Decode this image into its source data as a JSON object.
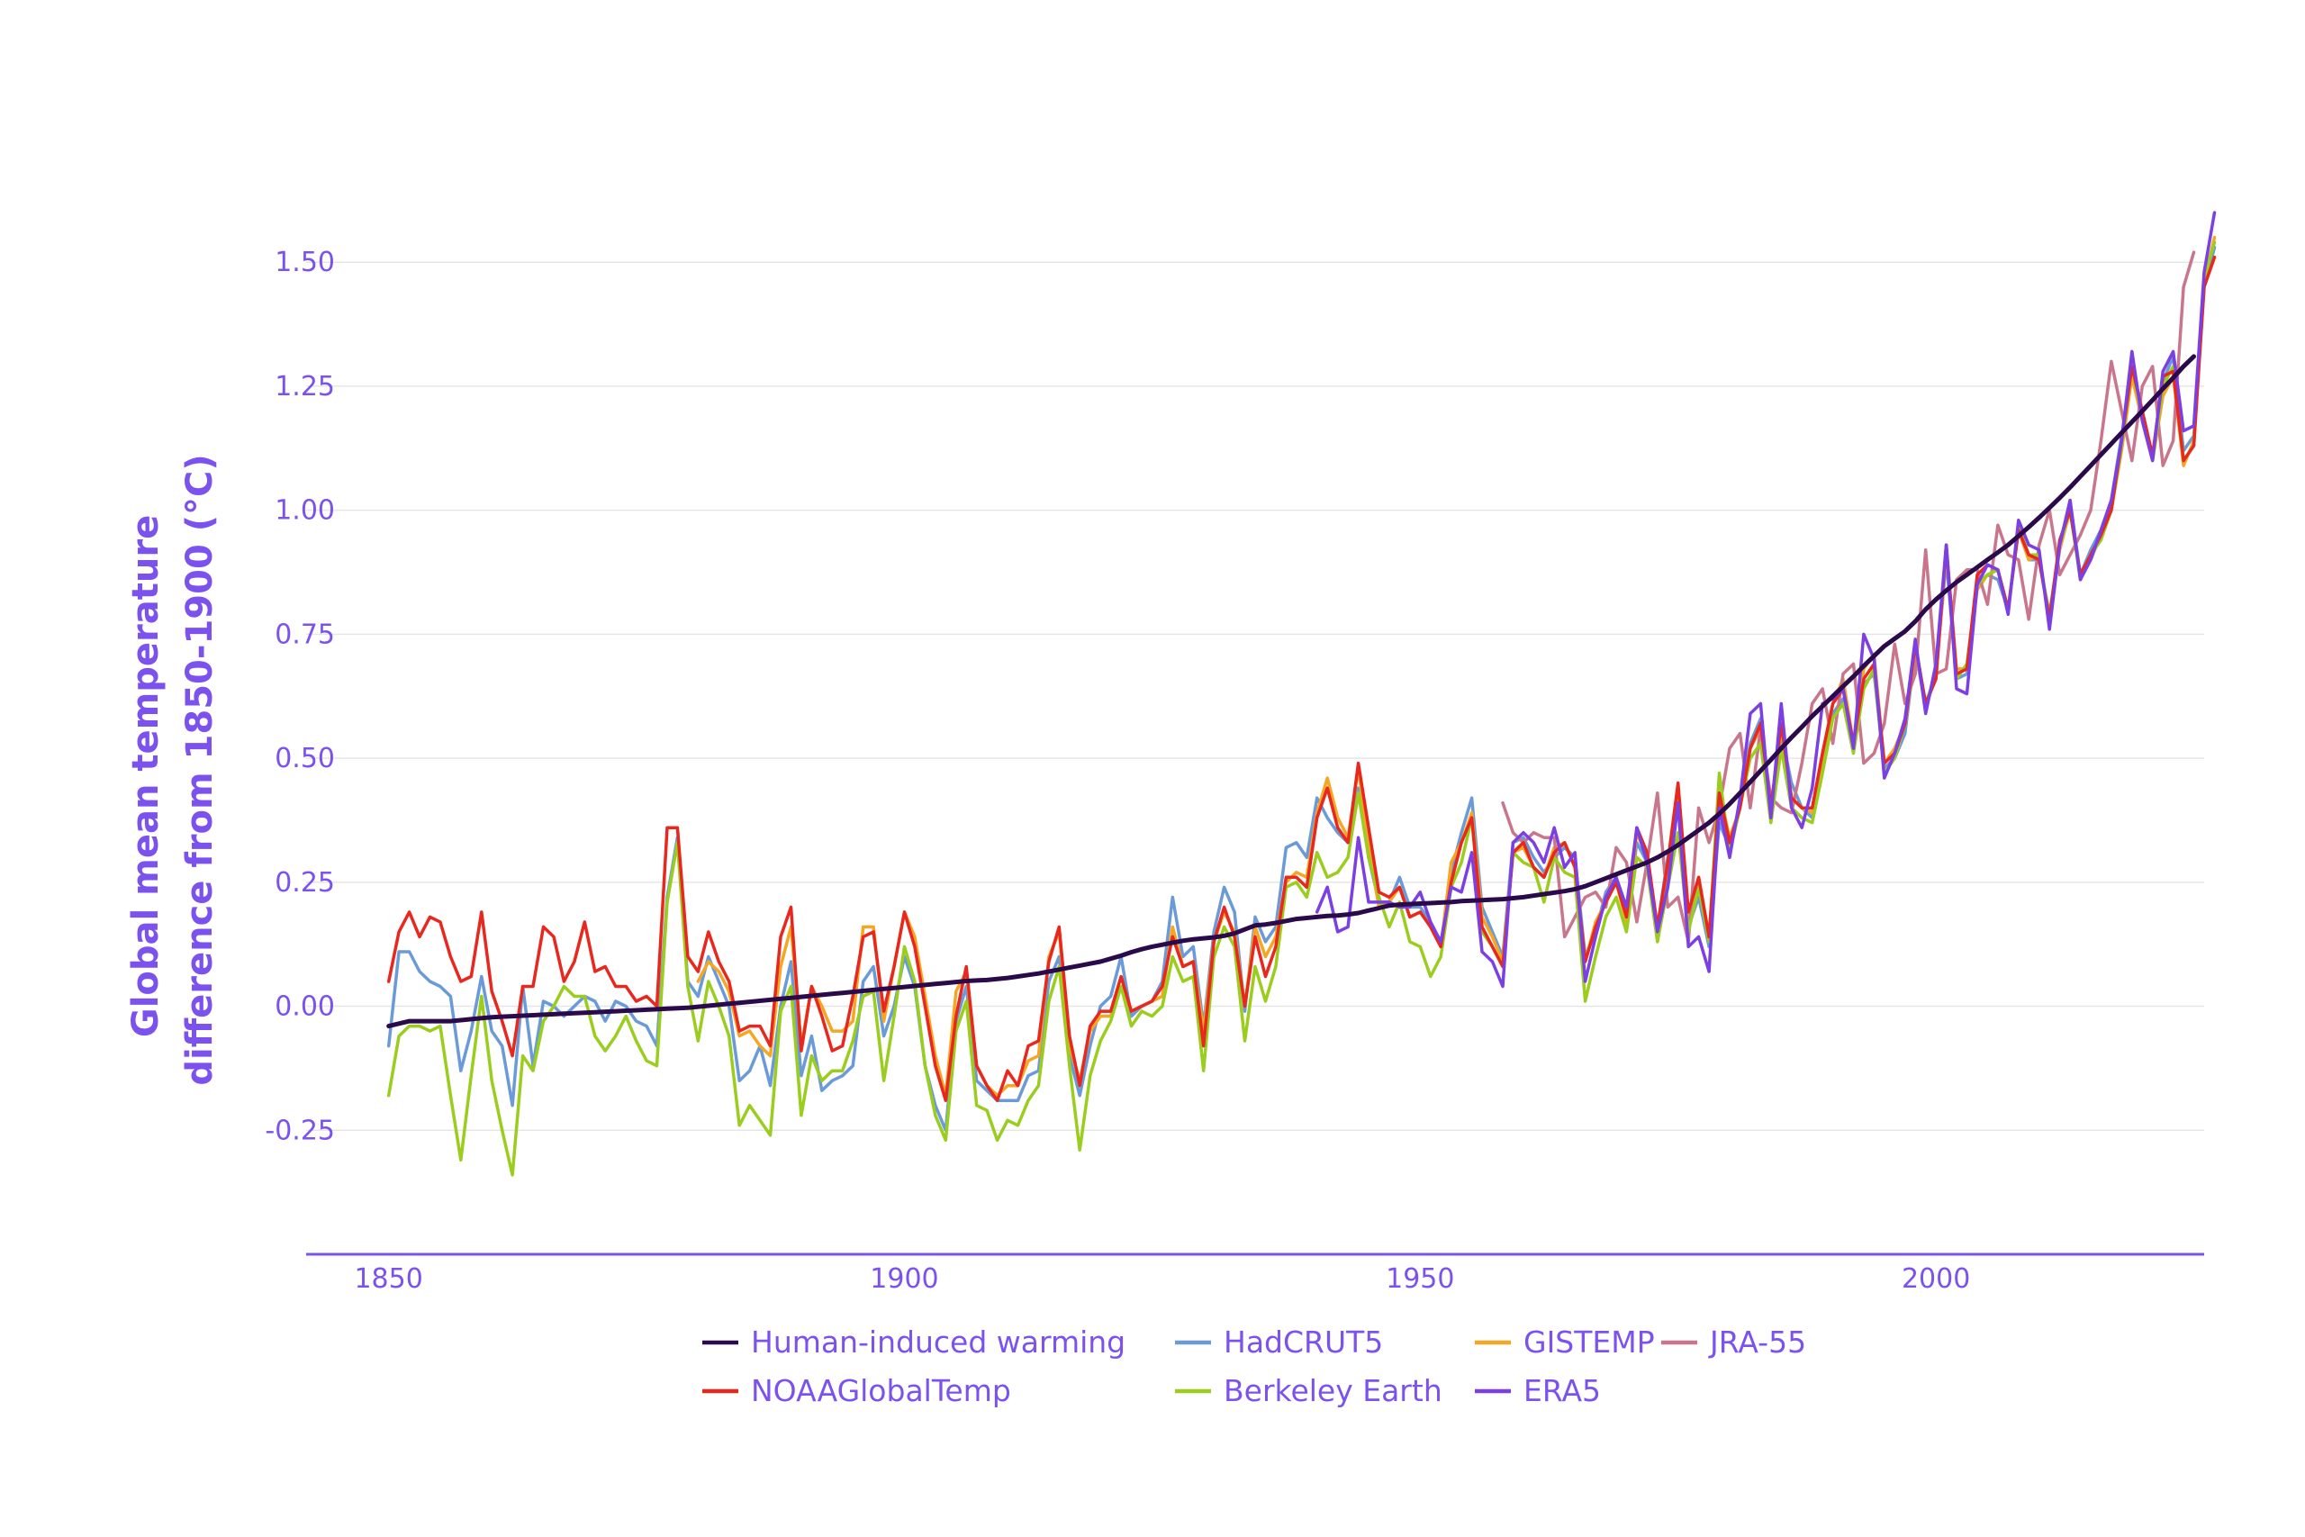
{
  "chart_data": {
    "type": "line",
    "title": "",
    "xlabel": "",
    "ylabel": [
      "Global mean temperature",
      "difference from 1850-1900 (°C)"
    ],
    "xlim": [
      1842,
      2026
    ],
    "ylim": [
      -0.5,
      1.72
    ],
    "x_ticks": [
      1850,
      1900,
      1950,
      2000
    ],
    "x_tick_labels": [
      "1850",
      "1900",
      "1950",
      "2000"
    ],
    "y_ticks": [
      1.5,
      1.25,
      1.0,
      0.75,
      0.5,
      0.25,
      0.0,
      -0.25
    ],
    "y_tick_labels": [
      "1.50",
      "1.25",
      "1.00",
      "0.75",
      "0.50",
      "0.25",
      "0.00",
      "-0.25"
    ],
    "grid": true,
    "legend": "bottom",
    "axis_color": "#7b52ee",
    "series": [
      {
        "name": "HadCRUT5",
        "color": "#6a9bd8",
        "width": 3.5,
        "x_start": 1850,
        "values": [
          -0.08,
          0.11,
          0.11,
          0.07,
          0.05,
          0.04,
          0.02,
          -0.13,
          -0.05,
          0.06,
          -0.05,
          -0.08,
          -0.2,
          0.04,
          -0.12,
          0.01,
          0.0,
          -0.02,
          0.0,
          0.02,
          0.01,
          -0.03,
          0.01,
          0.0,
          -0.03,
          -0.04,
          -0.08,
          0.22,
          0.34,
          0.05,
          0.02,
          0.1,
          0.05,
          0.0,
          -0.15,
          -0.13,
          -0.08,
          -0.16,
          0.0,
          0.09,
          -0.14,
          -0.06,
          -0.17,
          -0.15,
          -0.14,
          -0.12,
          0.05,
          0.08,
          -0.06,
          0.0,
          0.1,
          0.04,
          -0.12,
          -0.2,
          -0.25,
          -0.03,
          0.04,
          -0.15,
          -0.17,
          -0.19,
          -0.19,
          -0.19,
          -0.14,
          -0.13,
          0.05,
          0.1,
          -0.1,
          -0.18,
          -0.08,
          0.0,
          0.02,
          0.1,
          -0.02,
          0.0,
          0.01,
          0.05,
          0.22,
          0.1,
          0.12,
          -0.04,
          0.15,
          0.24,
          0.19,
          -0.01,
          0.18,
          0.13,
          0.16,
          0.32,
          0.33,
          0.3,
          0.42,
          0.38,
          0.35,
          0.33,
          0.44,
          0.3,
          0.21,
          0.21,
          0.26,
          0.2,
          0.2,
          0.17,
          0.12,
          0.27,
          0.35,
          0.42,
          0.2,
          0.15,
          0.1,
          0.33,
          0.34,
          0.3,
          0.27,
          0.3,
          0.32,
          0.3,
          0.1,
          0.15,
          0.23,
          0.26,
          0.17,
          0.33,
          0.29,
          0.16,
          0.3,
          0.4,
          0.16,
          0.22,
          0.12,
          0.37,
          0.32,
          0.4,
          0.53,
          0.58,
          0.38,
          0.55,
          0.45,
          0.4,
          0.38,
          0.48,
          0.59,
          0.62,
          0.53,
          0.65,
          0.67,
          0.48,
          0.5,
          0.55,
          0.72,
          0.6,
          0.67,
          0.9,
          0.66,
          0.67,
          0.85,
          0.87,
          0.86,
          0.8,
          0.96,
          0.9,
          0.9,
          0.79,
          0.93,
          1.02,
          0.87,
          0.92,
          0.96,
          1.02,
          1.15,
          1.28,
          1.19,
          1.11,
          1.26,
          1.31,
          1.12,
          1.15,
          1.45,
          1.53
        ]
      },
      {
        "name": "GISTEMP",
        "color": "#f5a623",
        "width": 3.5,
        "x_start": 1880,
        "values": [
          0.05,
          0.09,
          0.07,
          0.03,
          -0.06,
          -0.05,
          -0.08,
          -0.1,
          0.08,
          0.16,
          -0.08,
          0.04,
          0.0,
          -0.05,
          -0.05,
          -0.03,
          0.16,
          0.16,
          -0.03,
          0.08,
          0.19,
          0.14,
          0.02,
          -0.1,
          -0.18,
          0.03,
          0.07,
          -0.12,
          -0.16,
          -0.18,
          -0.16,
          -0.16,
          -0.11,
          -0.1,
          0.1,
          0.15,
          -0.08,
          -0.15,
          -0.05,
          -0.02,
          -0.02,
          0.04,
          -0.01,
          0.0,
          0.01,
          0.02,
          0.16,
          0.08,
          0.09,
          -0.05,
          0.13,
          0.19,
          0.15,
          0.0,
          0.16,
          0.1,
          0.14,
          0.25,
          0.27,
          0.26,
          0.39,
          0.46,
          0.38,
          0.34,
          0.48,
          0.32,
          0.2,
          0.21,
          0.24,
          0.18,
          0.19,
          0.16,
          0.12,
          0.29,
          0.33,
          0.39,
          0.18,
          0.14,
          0.09,
          0.31,
          0.32,
          0.28,
          0.26,
          0.32,
          0.33,
          0.28,
          0.09,
          0.17,
          0.21,
          0.25,
          0.17,
          0.35,
          0.3,
          0.15,
          0.26,
          0.42,
          0.17,
          0.26,
          0.14,
          0.43,
          0.34,
          0.4,
          0.52,
          0.56,
          0.4,
          0.56,
          0.42,
          0.4,
          0.39,
          0.5,
          0.61,
          0.66,
          0.53,
          0.68,
          0.71,
          0.49,
          0.52,
          0.57,
          0.72,
          0.61,
          0.66,
          0.92,
          0.68,
          0.68,
          0.84,
          0.87,
          0.88,
          0.8,
          0.96,
          0.9,
          0.91,
          0.78,
          0.92,
          1.0,
          0.87,
          0.9,
          0.95,
          1.0,
          1.12,
          1.27,
          1.18,
          1.1,
          1.23,
          1.27,
          1.09,
          1.14,
          1.46,
          1.55
        ]
      },
      {
        "name": "JRA-55",
        "color": "#c9768c",
        "width": 3.5,
        "x_start": 1958,
        "values": [
          0.41,
          0.35,
          0.33,
          0.35,
          0.34,
          0.34,
          0.14,
          0.18,
          0.22,
          0.23,
          0.2,
          0.32,
          0.29,
          0.17,
          0.29,
          0.43,
          0.2,
          0.22,
          0.13,
          0.4,
          0.33,
          0.4,
          0.52,
          0.55,
          0.4,
          0.56,
          0.42,
          0.4,
          0.39,
          0.49,
          0.61,
          0.64,
          0.53,
          0.67,
          0.69,
          0.49,
          0.51,
          0.57,
          0.73,
          0.61,
          0.67,
          0.92,
          0.67,
          0.68,
          0.86,
          0.88,
          0.88,
          0.81,
          0.97,
          0.91,
          0.9,
          0.78,
          0.93,
          1.0,
          0.87,
          0.91,
          0.95,
          1.0,
          1.14,
          1.3,
          1.2,
          1.1,
          1.25,
          1.29,
          1.09,
          1.14,
          1.45,
          1.52
        ]
      },
      {
        "name": "Berkeley Earth",
        "color": "#9acd1e",
        "width": 3.5,
        "x_start": 1850,
        "values": [
          -0.18,
          -0.06,
          -0.04,
          -0.04,
          -0.05,
          -0.04,
          -0.18,
          -0.31,
          -0.14,
          0.02,
          -0.15,
          -0.25,
          -0.34,
          -0.1,
          -0.13,
          -0.03,
          0.0,
          0.04,
          0.02,
          0.02,
          -0.06,
          -0.09,
          -0.06,
          -0.02,
          -0.07,
          -0.11,
          -0.12,
          0.21,
          0.33,
          0.04,
          -0.07,
          0.05,
          0.0,
          -0.06,
          -0.24,
          -0.2,
          -0.23,
          -0.26,
          -0.01,
          0.04,
          -0.22,
          -0.1,
          -0.15,
          -0.13,
          -0.13,
          -0.07,
          0.02,
          0.03,
          -0.15,
          -0.02,
          0.12,
          0.05,
          -0.12,
          -0.22,
          -0.27,
          -0.05,
          0.01,
          -0.2,
          -0.21,
          -0.27,
          -0.23,
          -0.24,
          -0.19,
          -0.16,
          0.01,
          0.08,
          -0.12,
          -0.29,
          -0.14,
          -0.07,
          -0.03,
          0.04,
          -0.04,
          -0.01,
          -0.02,
          0.0,
          0.1,
          0.05,
          0.06,
          -0.13,
          0.1,
          0.16,
          0.12,
          -0.07,
          0.08,
          0.01,
          0.08,
          0.24,
          0.25,
          0.22,
          0.31,
          0.26,
          0.27,
          0.3,
          0.43,
          0.3,
          0.22,
          0.16,
          0.21,
          0.13,
          0.12,
          0.06,
          0.1,
          0.24,
          0.29,
          0.38,
          0.15,
          0.12,
          0.08,
          0.31,
          0.29,
          0.28,
          0.21,
          0.3,
          0.27,
          0.26,
          0.01,
          0.1,
          0.18,
          0.22,
          0.15,
          0.3,
          0.28,
          0.13,
          0.24,
          0.35,
          0.15,
          0.24,
          0.13,
          0.47,
          0.31,
          0.4,
          0.5,
          0.53,
          0.37,
          0.52,
          0.4,
          0.38,
          0.37,
          0.47,
          0.58,
          0.61,
          0.51,
          0.64,
          0.68,
          0.47,
          0.5,
          0.57,
          0.73,
          0.61,
          0.67,
          0.93,
          0.66,
          0.69,
          0.85,
          0.87,
          0.88,
          0.8,
          0.97,
          0.91,
          0.91,
          0.78,
          0.93,
          1.0,
          0.86,
          0.91,
          0.94,
          1.0,
          1.13,
          1.29,
          1.19,
          1.1,
          1.25,
          1.29,
          1.1,
          1.13,
          1.47,
          1.54
        ]
      },
      {
        "name": "NOAAGlobalTemp",
        "color": "#e8281e",
        "width": 3.5,
        "x_start": 1850,
        "values": [
          0.05,
          0.15,
          0.19,
          0.14,
          0.18,
          0.17,
          0.1,
          0.05,
          0.06,
          0.19,
          0.03,
          -0.03,
          -0.1,
          0.04,
          0.04,
          0.16,
          0.14,
          0.05,
          0.09,
          0.17,
          0.07,
          0.08,
          0.04,
          0.04,
          0.01,
          0.02,
          0.0,
          0.36,
          0.36,
          0.1,
          0.07,
          0.15,
          0.09,
          0.05,
          -0.05,
          -0.04,
          -0.04,
          -0.08,
          0.14,
          0.2,
          -0.09,
          0.04,
          -0.02,
          -0.09,
          -0.08,
          0.02,
          0.14,
          0.15,
          -0.01,
          0.08,
          0.19,
          0.12,
          0.0,
          -0.12,
          -0.19,
          -0.02,
          0.08,
          -0.12,
          -0.16,
          -0.19,
          -0.13,
          -0.16,
          -0.08,
          -0.07,
          0.09,
          0.16,
          -0.06,
          -0.16,
          -0.04,
          -0.01,
          -0.01,
          0.06,
          -0.01,
          0.0,
          0.01,
          0.04,
          0.14,
          0.08,
          0.09,
          -0.08,
          0.13,
          0.2,
          0.14,
          0.0,
          0.14,
          0.06,
          0.12,
          0.26,
          0.26,
          0.24,
          0.38,
          0.44,
          0.36,
          0.33,
          0.49,
          0.36,
          0.23,
          0.22,
          0.24,
          0.18,
          0.19,
          0.16,
          0.12,
          0.25,
          0.33,
          0.38,
          0.16,
          0.12,
          0.08,
          0.31,
          0.33,
          0.28,
          0.26,
          0.31,
          0.33,
          0.28,
          0.09,
          0.16,
          0.21,
          0.25,
          0.18,
          0.36,
          0.31,
          0.16,
          0.29,
          0.45,
          0.19,
          0.26,
          0.14,
          0.43,
          0.33,
          0.4,
          0.52,
          0.57,
          0.4,
          0.57,
          0.42,
          0.4,
          0.4,
          0.51,
          0.61,
          0.64,
          0.53,
          0.66,
          0.69,
          0.49,
          0.51,
          0.57,
          0.73,
          0.61,
          0.66,
          0.93,
          0.67,
          0.68,
          0.87,
          0.89,
          0.88,
          0.8,
          0.96,
          0.91,
          0.9,
          0.78,
          0.94,
          1.0,
          0.87,
          0.91,
          0.95,
          1.0,
          1.14,
          1.29,
          1.2,
          1.11,
          1.27,
          1.28,
          1.1,
          1.13,
          1.45,
          1.51
        ]
      },
      {
        "name": "ERA5",
        "color": "#7b3fe4",
        "width": 3.5,
        "x_start": 1940,
        "values": [
          0.19,
          0.24,
          0.15,
          0.16,
          0.34,
          0.21,
          0.21,
          0.21,
          0.2,
          0.2,
          0.23,
          0.17,
          0.13,
          0.24,
          0.23,
          0.31,
          0.11,
          0.09,
          0.04,
          0.33,
          0.35,
          0.33,
          0.29,
          0.36,
          0.28,
          0.31,
          0.05,
          0.14,
          0.22,
          0.26,
          0.2,
          0.36,
          0.29,
          0.15,
          0.24,
          0.41,
          0.12,
          0.14,
          0.07,
          0.4,
          0.3,
          0.42,
          0.59,
          0.61,
          0.38,
          0.61,
          0.4,
          0.36,
          0.44,
          0.61,
          0.62,
          0.64,
          0.52,
          0.75,
          0.7,
          0.46,
          0.51,
          0.58,
          0.74,
          0.59,
          0.69,
          0.93,
          0.64,
          0.63,
          0.85,
          0.89,
          0.88,
          0.79,
          0.98,
          0.93,
          0.92,
          0.76,
          0.93,
          1.02,
          0.86,
          0.9,
          0.96,
          1.02,
          1.14,
          1.32,
          1.18,
          1.1,
          1.28,
          1.32,
          1.16,
          1.17,
          1.48,
          1.6
        ]
      },
      {
        "name": "Human-induced warming",
        "color": "#2a0a4a",
        "width": 5,
        "x_start": 1850,
        "values": [
          -0.04,
          -0.035,
          -0.03,
          -0.03,
          -0.03,
          -0.03,
          -0.03,
          -0.028,
          -0.026,
          -0.024,
          -0.022,
          -0.021,
          -0.02,
          -0.019,
          -0.018,
          -0.017,
          -0.016,
          -0.015,
          -0.014,
          -0.013,
          -0.012,
          -0.011,
          -0.01,
          -0.009,
          -0.008,
          -0.007,
          -0.006,
          -0.005,
          -0.004,
          -0.003,
          -0.001,
          0.001,
          0.003,
          0.005,
          0.007,
          0.009,
          0.011,
          0.013,
          0.015,
          0.017,
          0.019,
          0.021,
          0.023,
          0.025,
          0.027,
          0.029,
          0.031,
          0.033,
          0.035,
          0.037,
          0.039,
          0.041,
          0.043,
          0.045,
          0.047,
          0.049,
          0.051,
          0.052,
          0.053,
          0.055,
          0.057,
          0.06,
          0.063,
          0.066,
          0.07,
          0.074,
          0.078,
          0.082,
          0.086,
          0.09,
          0.096,
          0.102,
          0.109,
          0.115,
          0.12,
          0.124,
          0.128,
          0.132,
          0.135,
          0.137,
          0.139,
          0.142,
          0.147,
          0.155,
          0.163,
          0.165,
          0.168,
          0.172,
          0.176,
          0.178,
          0.18,
          0.182,
          0.183,
          0.185,
          0.188,
          0.193,
          0.198,
          0.203,
          0.205,
          0.206,
          0.207,
          0.208,
          0.209,
          0.21,
          0.212,
          0.213,
          0.214,
          0.215,
          0.216,
          0.218,
          0.22,
          0.223,
          0.226,
          0.229,
          0.232,
          0.236,
          0.242,
          0.25,
          0.258,
          0.266,
          0.274,
          0.282,
          0.29,
          0.3,
          0.312,
          0.325,
          0.34,
          0.355,
          0.37,
          0.388,
          0.408,
          0.43,
          0.452,
          0.475,
          0.497,
          0.52,
          0.542,
          0.563,
          0.585,
          0.605,
          0.625,
          0.645,
          0.665,
          0.686,
          0.706,
          0.726,
          0.741,
          0.756,
          0.776,
          0.8,
          0.82,
          0.838,
          0.855,
          0.87,
          0.885,
          0.9,
          0.915,
          0.93,
          0.948,
          0.966,
          0.985,
          1.005,
          1.025,
          1.046,
          1.068,
          1.09,
          1.112,
          1.134,
          1.156,
          1.178,
          1.2,
          1.222,
          1.245,
          1.267,
          1.29,
          1.31
        ]
      }
    ]
  },
  "legend": {
    "items": [
      {
        "name": "Human-induced warming",
        "color": "#2a0a4a",
        "row": 0,
        "col": 0
      },
      {
        "name": "HadCRUT5",
        "color": "#6a9bd8",
        "row": 0,
        "col": 1
      },
      {
        "name": "GISTEMP",
        "color": "#f5a623",
        "row": 0,
        "col": 2
      },
      {
        "name": "JRA-55",
        "color": "#c9768c",
        "row": 0,
        "col": 3
      },
      {
        "name": "NOAAGlobalTemp",
        "color": "#e8281e",
        "row": 1,
        "col": 0
      },
      {
        "name": "Berkeley Earth",
        "color": "#9acd1e",
        "row": 1,
        "col": 1
      },
      {
        "name": "ERA5",
        "color": "#7b3fe4",
        "row": 1,
        "col": 2
      }
    ]
  }
}
